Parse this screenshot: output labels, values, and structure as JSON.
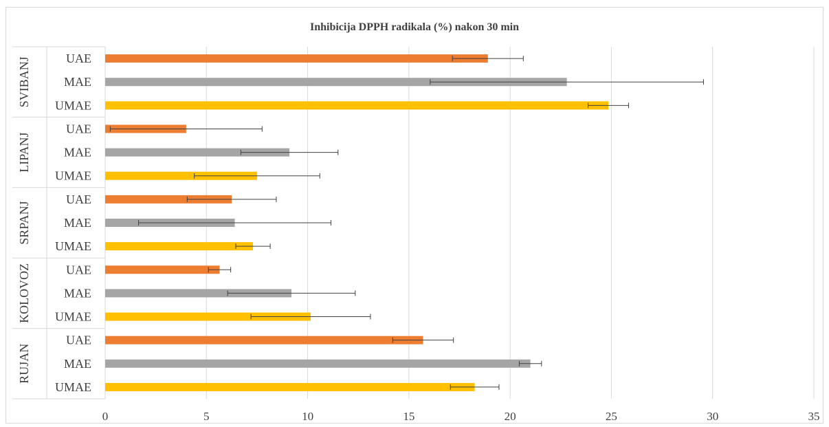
{
  "chart_data": {
    "type": "bar",
    "orientation": "horizontal",
    "title": "Inhibicija DPPH radikala (%) nakon 30 min",
    "xlabel": "",
    "ylabel": "",
    "xlim": [
      0,
      35
    ],
    "x_ticks": [
      0,
      5,
      10,
      15,
      20,
      25,
      30,
      35
    ],
    "grid": "vertical",
    "legend": "none",
    "colors": {
      "UAE": "#ED7D31",
      "MAE": "#A5A5A5",
      "UMAE": "#FFC000",
      "grid": "#d9d9d9",
      "error_bar": "#404040"
    },
    "groups": [
      {
        "name": "SVIBANJ",
        "bars": [
          {
            "method": "UAE",
            "value": 18.9,
            "error": 1.75
          },
          {
            "method": "MAE",
            "value": 22.8,
            "error": 6.75
          },
          {
            "method": "UMAE",
            "value": 24.85,
            "error": 1.0
          }
        ]
      },
      {
        "name": "LIPANJ",
        "bars": [
          {
            "method": "UAE",
            "value": 4.0,
            "error": 3.75
          },
          {
            "method": "MAE",
            "value": 9.1,
            "error": 2.4
          },
          {
            "method": "UMAE",
            "value": 7.5,
            "error": 3.1
          }
        ]
      },
      {
        "name": "SRPANJ",
        "bars": [
          {
            "method": "UAE",
            "value": 6.25,
            "error": 2.2
          },
          {
            "method": "MAE",
            "value": 6.4,
            "error": 4.75
          },
          {
            "method": "UMAE",
            "value": 7.3,
            "error": 0.85
          }
        ]
      },
      {
        "name": "KOLOVOZ",
        "bars": [
          {
            "method": "UAE",
            "value": 5.65,
            "error": 0.55
          },
          {
            "method": "MAE",
            "value": 9.2,
            "error": 3.15
          },
          {
            "method": "UMAE",
            "value": 10.15,
            "error": 2.95
          }
        ]
      },
      {
        "name": "RUJAN",
        "bars": [
          {
            "method": "UAE",
            "value": 15.7,
            "error": 1.5
          },
          {
            "method": "MAE",
            "value": 21.0,
            "error": 0.55
          },
          {
            "method": "UMAE",
            "value": 18.25,
            "error": 1.2
          }
        ]
      }
    ]
  }
}
